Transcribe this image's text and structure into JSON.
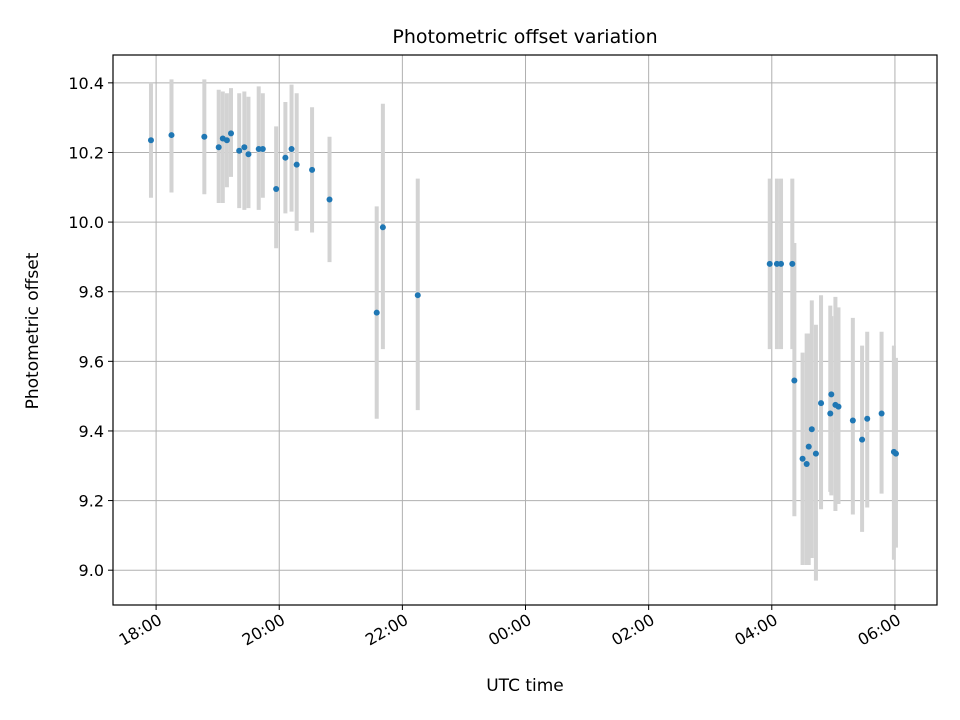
{
  "chart_data": {
    "type": "scatter",
    "title": "Photometric offset variation",
    "xlabel": "UTC time",
    "ylabel": "Photometric offset",
    "x_unit": "UTC time (HH:MM), night spanning midnight",
    "xlim": [
      "17:18",
      "06:41 (+1 day)"
    ],
    "ylim": [
      8.9,
      10.48
    ],
    "grid": true,
    "x_ticks": [
      "18:00",
      "20:00",
      "22:00",
      "00:00",
      "02:00",
      "04:00",
      "06:00"
    ],
    "y_ticks": [
      "9.0",
      "9.2",
      "9.4",
      "9.6",
      "9.8",
      "10.0",
      "10.2",
      "10.4"
    ],
    "colors": {
      "points": "#1f77b4",
      "errorbars": "#d3d3d3",
      "grid": "#b0b0b0",
      "axes": "#000000"
    },
    "points": [
      {
        "x": "17:55",
        "y": 10.235,
        "err": [
          10.07,
          10.4
        ]
      },
      {
        "x": "18:15",
        "y": 10.25,
        "err": [
          10.085,
          10.41
        ]
      },
      {
        "x": "18:47",
        "y": 10.245,
        "err": [
          10.08,
          10.41
        ]
      },
      {
        "x": "19:01",
        "y": 10.215,
        "err": [
          10.055,
          10.38
        ]
      },
      {
        "x": "19:05",
        "y": 10.24,
        "err": [
          10.055,
          10.375
        ]
      },
      {
        "x": "19:09",
        "y": 10.235,
        "err": [
          10.1,
          10.37
        ]
      },
      {
        "x": "19:13",
        "y": 10.255,
        "err": [
          10.13,
          10.385
        ]
      },
      {
        "x": "19:21",
        "y": 10.205,
        "err": [
          10.04,
          10.37
        ]
      },
      {
        "x": "19:26",
        "y": 10.215,
        "err": [
          10.035,
          10.375
        ]
      },
      {
        "x": "19:30",
        "y": 10.195,
        "err": [
          10.04,
          10.36
        ]
      },
      {
        "x": "19:40",
        "y": 10.21,
        "err": [
          10.035,
          10.39
        ]
      },
      {
        "x": "19:44",
        "y": 10.21,
        "err": [
          10.07,
          10.37
        ]
      },
      {
        "x": "19:57",
        "y": 10.095,
        "err": [
          9.925,
          10.275
        ]
      },
      {
        "x": "20:06",
        "y": 10.185,
        "err": [
          10.025,
          10.345
        ]
      },
      {
        "x": "20:12",
        "y": 10.21,
        "err": [
          10.03,
          10.395
        ]
      },
      {
        "x": "20:17",
        "y": 10.165,
        "err": [
          9.975,
          10.37
        ]
      },
      {
        "x": "20:32",
        "y": 10.15,
        "err": [
          9.97,
          10.33
        ]
      },
      {
        "x": "20:49",
        "y": 10.065,
        "err": [
          9.885,
          10.245
        ]
      },
      {
        "x": "21:35",
        "y": 9.74,
        "err": [
          9.435,
          10.045
        ]
      },
      {
        "x": "21:41",
        "y": 9.985,
        "err": [
          9.635,
          10.34
        ]
      },
      {
        "x": "22:15",
        "y": 9.79,
        "err": [
          9.46,
          10.125
        ]
      },
      {
        "x": "03:58",
        "y": 9.88,
        "err": [
          9.635,
          10.125
        ]
      },
      {
        "x": "04:05",
        "y": 9.88,
        "err": [
          9.635,
          10.125
        ]
      },
      {
        "x": "04:09",
        "y": 9.88,
        "err": [
          9.635,
          10.125
        ]
      },
      {
        "x": "04:20",
        "y": 9.88,
        "err": [
          9.635,
          10.125
        ]
      },
      {
        "x": "04:22",
        "y": 9.545,
        "err": [
          9.155,
          9.94
        ]
      },
      {
        "x": "04:30",
        "y": 9.32,
        "err": [
          9.015,
          9.625
        ]
      },
      {
        "x": "04:34",
        "y": 9.305,
        "err": [
          9.015,
          9.68
        ]
      },
      {
        "x": "04:36",
        "y": 9.355,
        "err": [
          9.015,
          9.68
        ]
      },
      {
        "x": "04:39",
        "y": 9.405,
        "err": [
          9.035,
          9.775
        ]
      },
      {
        "x": "04:43",
        "y": 9.335,
        "err": [
          8.97,
          9.705
        ]
      },
      {
        "x": "04:48",
        "y": 9.48,
        "err": [
          9.175,
          9.79
        ]
      },
      {
        "x": "04:57",
        "y": 9.45,
        "err": [
          9.225,
          9.76
        ]
      },
      {
        "x": "04:58",
        "y": 9.505,
        "err": [
          9.215,
          9.73
        ]
      },
      {
        "x": "05:02",
        "y": 9.475,
        "err": [
          9.17,
          9.785
        ]
      },
      {
        "x": "05:05",
        "y": 9.47,
        "err": [
          9.19,
          9.755
        ]
      },
      {
        "x": "05:19",
        "y": 9.43,
        "err": [
          9.16,
          9.725
        ]
      },
      {
        "x": "05:28",
        "y": 9.375,
        "err": [
          9.11,
          9.645
        ]
      },
      {
        "x": "05:33",
        "y": 9.435,
        "err": [
          9.18,
          9.685
        ]
      },
      {
        "x": "05:47",
        "y": 9.45,
        "err": [
          9.22,
          9.685
        ]
      },
      {
        "x": "05:59",
        "y": 9.34,
        "err": [
          9.03,
          9.645
        ]
      },
      {
        "x": "06:01",
        "y": 9.335,
        "err": [
          9.065,
          9.61
        ]
      }
    ]
  }
}
